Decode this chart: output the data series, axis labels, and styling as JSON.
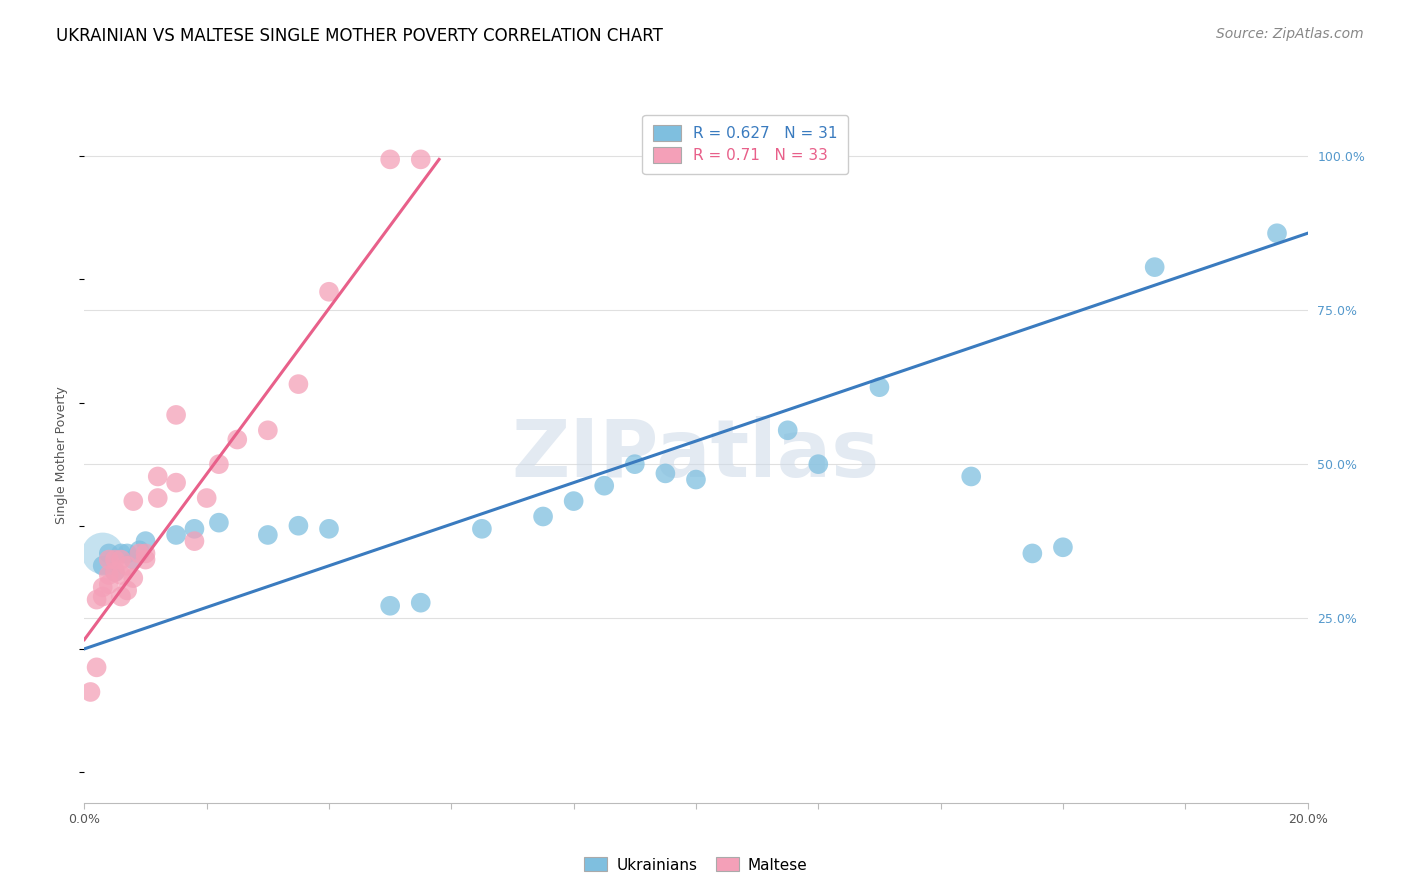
{
  "title": "UKRAINIAN VS MALTESE SINGLE MOTHER POVERTY CORRELATION CHART",
  "source": "Source: ZipAtlas.com",
  "ylabel": "Single Mother Poverty",
  "xmin": 0.0,
  "xmax": 0.2,
  "ymin": -0.05,
  "ymax": 1.08,
  "yticks": [
    0.25,
    0.5,
    0.75,
    1.0
  ],
  "ytick_labels": [
    "25.0%",
    "50.0%",
    "75.0%",
    "100.0%"
  ],
  "ukrainian_R": 0.627,
  "ukrainian_N": 31,
  "maltese_R": 0.71,
  "maltese_N": 33,
  "blue_color": "#7fbfdf",
  "pink_color": "#f4a0b8",
  "blue_line_color": "#3a7bbf",
  "pink_line_color": "#e8608a",
  "legend_text_color_blue": "#3a7bbf",
  "legend_text_color_pink": "#e8608a",
  "watermark": "ZIPatlas",
  "ukrainian_scatter": [
    [
      0.003,
      0.335
    ],
    [
      0.004,
      0.355
    ],
    [
      0.005,
      0.325
    ],
    [
      0.006,
      0.355
    ],
    [
      0.007,
      0.355
    ],
    [
      0.008,
      0.345
    ],
    [
      0.009,
      0.36
    ],
    [
      0.01,
      0.375
    ],
    [
      0.015,
      0.385
    ],
    [
      0.018,
      0.395
    ],
    [
      0.022,
      0.405
    ],
    [
      0.03,
      0.385
    ],
    [
      0.035,
      0.4
    ],
    [
      0.04,
      0.395
    ],
    [
      0.05,
      0.27
    ],
    [
      0.055,
      0.275
    ],
    [
      0.065,
      0.395
    ],
    [
      0.075,
      0.415
    ],
    [
      0.08,
      0.44
    ],
    [
      0.085,
      0.465
    ],
    [
      0.09,
      0.5
    ],
    [
      0.095,
      0.485
    ],
    [
      0.1,
      0.475
    ],
    [
      0.115,
      0.555
    ],
    [
      0.12,
      0.5
    ],
    [
      0.13,
      0.625
    ],
    [
      0.145,
      0.48
    ],
    [
      0.155,
      0.355
    ],
    [
      0.16,
      0.365
    ],
    [
      0.175,
      0.82
    ],
    [
      0.195,
      0.875
    ]
  ],
  "ukrainian_large_dot": [
    0.003,
    0.355
  ],
  "maltese_scatter": [
    [
      0.001,
      0.13
    ],
    [
      0.002,
      0.17
    ],
    [
      0.002,
      0.28
    ],
    [
      0.003,
      0.285
    ],
    [
      0.003,
      0.3
    ],
    [
      0.004,
      0.305
    ],
    [
      0.004,
      0.32
    ],
    [
      0.004,
      0.345
    ],
    [
      0.005,
      0.325
    ],
    [
      0.005,
      0.345
    ],
    [
      0.006,
      0.285
    ],
    [
      0.006,
      0.32
    ],
    [
      0.006,
      0.345
    ],
    [
      0.007,
      0.295
    ],
    [
      0.007,
      0.335
    ],
    [
      0.008,
      0.315
    ],
    [
      0.008,
      0.44
    ],
    [
      0.009,
      0.355
    ],
    [
      0.01,
      0.345
    ],
    [
      0.01,
      0.355
    ],
    [
      0.012,
      0.445
    ],
    [
      0.012,
      0.48
    ],
    [
      0.015,
      0.47
    ],
    [
      0.015,
      0.58
    ],
    [
      0.018,
      0.375
    ],
    [
      0.02,
      0.445
    ],
    [
      0.022,
      0.5
    ],
    [
      0.025,
      0.54
    ],
    [
      0.03,
      0.555
    ],
    [
      0.035,
      0.63
    ],
    [
      0.04,
      0.78
    ],
    [
      0.05,
      0.995
    ],
    [
      0.055,
      0.995
    ]
  ],
  "ukrainian_line_x": [
    0.0,
    0.2
  ],
  "ukrainian_line_y": [
    0.2,
    0.875
  ],
  "maltese_line_x": [
    0.0,
    0.058
  ],
  "maltese_line_y": [
    0.215,
    0.995
  ],
  "grid_color": "#e0e0e0",
  "title_fontsize": 12,
  "source_fontsize": 10,
  "axis_label_fontsize": 9,
  "tick_label_fontsize": 9,
  "legend_fontsize": 11
}
